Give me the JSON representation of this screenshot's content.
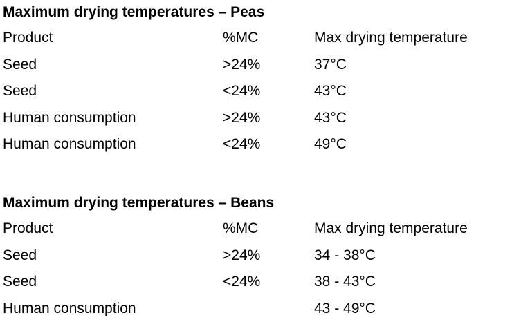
{
  "tables": [
    {
      "title": "Maximum drying temperatures – Peas",
      "header": [
        "Product",
        "%MC",
        "Max drying temperature"
      ],
      "rows": [
        [
          "Seed",
          ">24%",
          "37°C"
        ],
        [
          "Seed",
          "<24%",
          "43°C"
        ],
        [
          "Human consumption",
          ">24%",
          "43°C"
        ],
        [
          "Human consumption",
          "<24%",
          "49°C"
        ]
      ]
    },
    {
      "title": "Maximum drying temperatures – Beans",
      "header": [
        "Product",
        "%MC",
        "Max drying temperature"
      ],
      "rows": [
        [
          "Seed",
          ">24%",
          "34 - 38°C"
        ],
        [
          "Seed",
          "<24%",
          "38 - 43°C"
        ],
        [
          "Human consumption",
          "",
          "43 - 49°C"
        ]
      ]
    }
  ]
}
